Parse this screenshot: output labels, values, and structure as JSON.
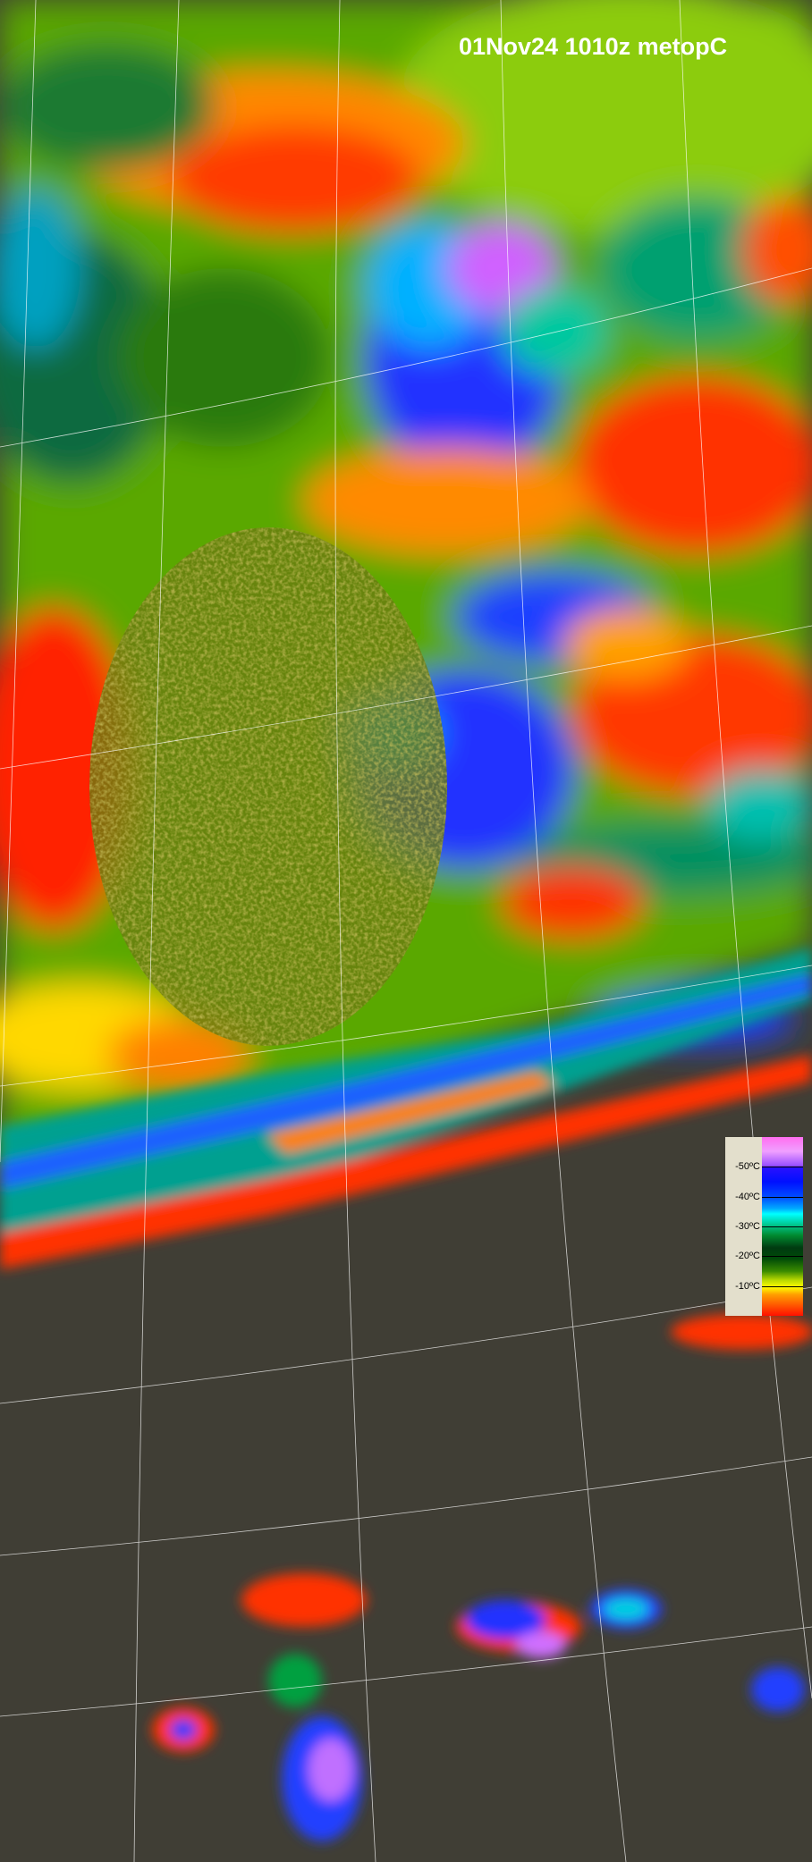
{
  "title": "01Nov24 1010z metopC",
  "legend": {
    "labels": [
      "-50ºC",
      "-40ºC",
      "-30ºC",
      "-20ºC",
      "-10ºC"
    ],
    "levels": [
      -50,
      -40,
      -30,
      -20,
      -10
    ],
    "colors": {
      "coldest": "#ff6ef0",
      "very_cold": "#0010ff",
      "cold": "#00ffff",
      "mid": "#008a30",
      "warm": "#ffff00",
      "warmest": "#ff1000"
    }
  },
  "colors": {
    "background_clear": "#403e35",
    "graticule": "#ffffff"
  }
}
